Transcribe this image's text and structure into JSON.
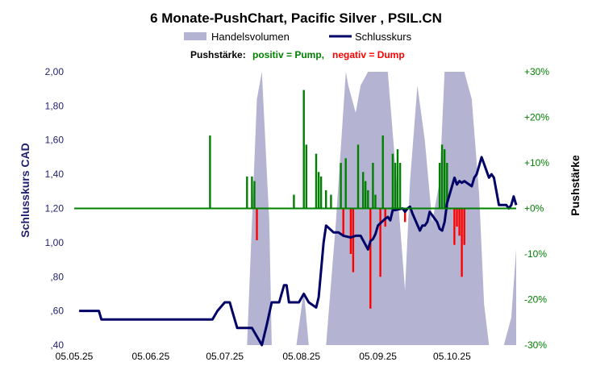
{
  "chart_data": {
    "type": "bar+line+area",
    "title": "6 Monate-PushChart,  Pacific Silver , PSIL.CN",
    "legend": {
      "volume_label": "Handelsvolumen",
      "close_label": "Schlusskurs",
      "placement": "top"
    },
    "subtitle": {
      "prefix": "Pushstärke:",
      "positive": "positiv = Pump,",
      "negative": "negativ = Dump"
    },
    "left_axis": {
      "title": "Schlusskurs CAD",
      "min": 0.4,
      "max": 2.0,
      "ticks": [
        2.0,
        1.8,
        1.6,
        1.4,
        1.2,
        1.0,
        0.8,
        0.6,
        0.4
      ],
      "tick_labels": [
        "2,00",
        "1,80",
        "1,60",
        "1,40",
        "1,20",
        "1,00",
        ",80",
        ",60",
        ",40"
      ]
    },
    "right_axis": {
      "title": "Pushstärke",
      "min": -30,
      "max": 30,
      "ticks": [
        30,
        20,
        10,
        0,
        -10,
        -20,
        -30
      ],
      "tick_labels": [
        "+30%",
        "+20%",
        "+10%",
        "+0%",
        "-10%",
        "-20%",
        "-30%"
      ]
    },
    "x_axis": {
      "start": "2025-05-05",
      "end": "2025-10-31",
      "ticks": [
        "2025-05-05",
        "2025-06-05",
        "2025-07-05",
        "2025-08-05",
        "2025-09-05",
        "2025-10-05"
      ],
      "tick_labels": [
        "05.05.25",
        "05.06.25",
        "05.07.25",
        "05.08.25",
        "05.09.25",
        "05.10.25"
      ]
    },
    "colors": {
      "close": "#000066",
      "volume": "#b4b4d2",
      "positive": "#008000",
      "negative": "#ff0000",
      "zero_line": "#008000",
      "left_axis_text": "#1f1f6e",
      "right_axis_text": "#008000"
    },
    "close_series": [
      [
        "2025-05-07",
        0.6
      ],
      [
        "2025-05-15",
        0.6
      ],
      [
        "2025-05-16",
        0.55
      ],
      [
        "2025-06-10",
        0.55
      ],
      [
        "2025-06-20",
        0.55
      ],
      [
        "2025-06-30",
        0.55
      ],
      [
        "2025-07-02",
        0.6
      ],
      [
        "2025-07-05",
        0.65
      ],
      [
        "2025-07-07",
        0.65
      ],
      [
        "2025-07-08",
        0.6
      ],
      [
        "2025-07-10",
        0.5
      ],
      [
        "2025-07-14",
        0.5
      ],
      [
        "2025-07-16",
        0.5
      ],
      [
        "2025-07-20",
        0.4
      ],
      [
        "2025-07-22",
        0.52
      ],
      [
        "2025-07-24",
        0.65
      ],
      [
        "2025-07-27",
        0.65
      ],
      [
        "2025-07-29",
        0.75
      ],
      [
        "2025-07-30",
        0.75
      ],
      [
        "2025-07-31",
        0.65
      ],
      [
        "2025-08-04",
        0.65
      ],
      [
        "2025-08-06",
        0.7
      ],
      [
        "2025-08-08",
        0.65
      ],
      [
        "2025-08-11",
        0.62
      ],
      [
        "2025-08-12",
        0.68
      ],
      [
        "2025-08-14",
        1.0
      ],
      [
        "2025-08-15",
        1.1
      ],
      [
        "2025-08-18",
        1.06
      ],
      [
        "2025-08-20",
        1.06
      ],
      [
        "2025-08-22",
        1.04
      ],
      [
        "2025-08-25",
        1.03
      ],
      [
        "2025-08-27",
        1.04
      ],
      [
        "2025-08-29",
        1.04
      ],
      [
        "2025-09-01",
        0.96
      ],
      [
        "2025-09-02",
        1.01
      ],
      [
        "2025-09-03",
        1.02
      ],
      [
        "2025-09-04",
        1.05
      ],
      [
        "2025-09-05",
        1.1
      ],
      [
        "2025-09-08",
        1.14
      ],
      [
        "2025-09-09",
        1.15
      ],
      [
        "2025-09-10",
        1.13
      ],
      [
        "2025-09-11",
        1.19
      ],
      [
        "2025-09-12",
        1.19
      ],
      [
        "2025-09-15",
        1.2
      ],
      [
        "2025-09-16",
        1.18
      ],
      [
        "2025-09-17",
        1.2
      ],
      [
        "2025-09-18",
        1.21
      ],
      [
        "2025-09-19",
        1.17
      ],
      [
        "2025-09-22",
        1.07
      ],
      [
        "2025-09-23",
        1.1
      ],
      [
        "2025-09-24",
        1.1
      ],
      [
        "2025-09-25",
        1.12
      ],
      [
        "2025-09-26",
        1.18
      ],
      [
        "2025-09-29",
        1.12
      ],
      [
        "2025-09-30",
        1.08
      ],
      [
        "2025-10-01",
        1.07
      ],
      [
        "2025-10-02",
        1.12
      ],
      [
        "2025-10-03",
        1.23
      ],
      [
        "2025-10-06",
        1.38
      ],
      [
        "2025-10-07",
        1.34
      ],
      [
        "2025-10-08",
        1.36
      ],
      [
        "2025-10-09",
        1.35
      ],
      [
        "2025-10-10",
        1.36
      ],
      [
        "2025-10-13",
        1.33
      ],
      [
        "2025-10-14",
        1.38
      ],
      [
        "2025-10-15",
        1.4
      ],
      [
        "2025-10-16",
        1.45
      ],
      [
        "2025-10-17",
        1.5
      ],
      [
        "2025-10-20",
        1.38
      ],
      [
        "2025-10-21",
        1.4
      ],
      [
        "2025-10-22",
        1.38
      ],
      [
        "2025-10-23",
        1.3
      ],
      [
        "2025-10-24",
        1.22
      ],
      [
        "2025-10-27",
        1.22
      ],
      [
        "2025-10-28",
        1.2
      ],
      [
        "2025-10-29",
        1.22
      ],
      [
        "2025-10-30",
        1.27
      ],
      [
        "2025-10-31",
        1.22
      ]
    ],
    "push_series": [
      [
        "2025-06-29",
        16
      ],
      [
        "2025-07-14",
        7
      ],
      [
        "2025-07-16",
        7
      ],
      [
        "2025-07-17",
        6
      ],
      [
        "2025-07-18",
        -7
      ],
      [
        "2025-08-02",
        3
      ],
      [
        "2025-08-06",
        26
      ],
      [
        "2025-08-07",
        14
      ],
      [
        "2025-08-11",
        12
      ],
      [
        "2025-08-12",
        8
      ],
      [
        "2025-08-13",
        7
      ],
      [
        "2025-08-15",
        4
      ],
      [
        "2025-08-17",
        3
      ],
      [
        "2025-08-21",
        10
      ],
      [
        "2025-08-22",
        -6
      ],
      [
        "2025-08-23",
        11
      ],
      [
        "2025-08-25",
        -10
      ],
      [
        "2025-08-26",
        -14
      ],
      [
        "2025-08-28",
        14
      ],
      [
        "2025-08-30",
        8
      ],
      [
        "2025-08-31",
        6
      ],
      [
        "2025-09-01",
        4
      ],
      [
        "2025-09-02",
        -22
      ],
      [
        "2025-09-03",
        10
      ],
      [
        "2025-09-04",
        3
      ],
      [
        "2025-09-06",
        -15
      ],
      [
        "2025-09-07",
        16
      ],
      [
        "2025-09-08",
        -4
      ],
      [
        "2025-09-11",
        12
      ],
      [
        "2025-09-12",
        10
      ],
      [
        "2025-09-13",
        13
      ],
      [
        "2025-09-14",
        10
      ],
      [
        "2025-09-16",
        -3
      ],
      [
        "2025-09-30",
        10
      ],
      [
        "2025-10-01",
        14
      ],
      [
        "2025-10-02",
        13
      ],
      [
        "2025-10-03",
        10
      ],
      [
        "2025-10-06",
        -8
      ],
      [
        "2025-10-07",
        -4
      ],
      [
        "2025-10-08",
        -6
      ],
      [
        "2025-10-09",
        -15
      ],
      [
        "2025-10-10",
        -8
      ]
    ],
    "volume_series": [
      [
        "2025-07-14",
        0.0
      ],
      [
        "2025-07-18",
        0.9
      ],
      [
        "2025-07-20",
        1.0
      ],
      [
        "2025-07-23",
        0.45
      ],
      [
        "2025-07-24",
        0.0
      ],
      [
        "2025-08-03",
        0.0
      ],
      [
        "2025-08-06",
        0.2
      ],
      [
        "2025-08-08",
        0.0
      ],
      [
        "2025-08-15",
        0.0
      ],
      [
        "2025-08-19",
        0.45
      ],
      [
        "2025-08-23",
        1.0
      ],
      [
        "2025-08-24",
        0.95
      ],
      [
        "2025-08-27",
        0.85
      ],
      [
        "2025-08-29",
        0.95
      ],
      [
        "2025-09-01",
        1.0
      ],
      [
        "2025-09-03",
        1.0
      ],
      [
        "2025-09-06",
        1.0
      ],
      [
        "2025-09-09",
        1.0
      ],
      [
        "2025-09-13",
        0.55
      ],
      [
        "2025-09-16",
        0.2
      ],
      [
        "2025-09-18",
        0.6
      ],
      [
        "2025-09-21",
        0.95
      ],
      [
        "2025-09-24",
        0.75
      ],
      [
        "2025-09-27",
        0.45
      ],
      [
        "2025-09-30",
        0.6
      ],
      [
        "2025-10-02",
        1.0
      ],
      [
        "2025-10-04",
        1.0
      ],
      [
        "2025-10-07",
        1.0
      ],
      [
        "2025-10-10",
        1.0
      ],
      [
        "2025-10-13",
        0.9
      ],
      [
        "2025-10-16",
        0.55
      ],
      [
        "2025-10-18",
        0.15
      ],
      [
        "2025-10-20",
        0.0
      ],
      [
        "2025-10-26",
        0.0
      ],
      [
        "2025-10-29",
        0.1
      ],
      [
        "2025-10-31",
        0.35
      ]
    ]
  }
}
